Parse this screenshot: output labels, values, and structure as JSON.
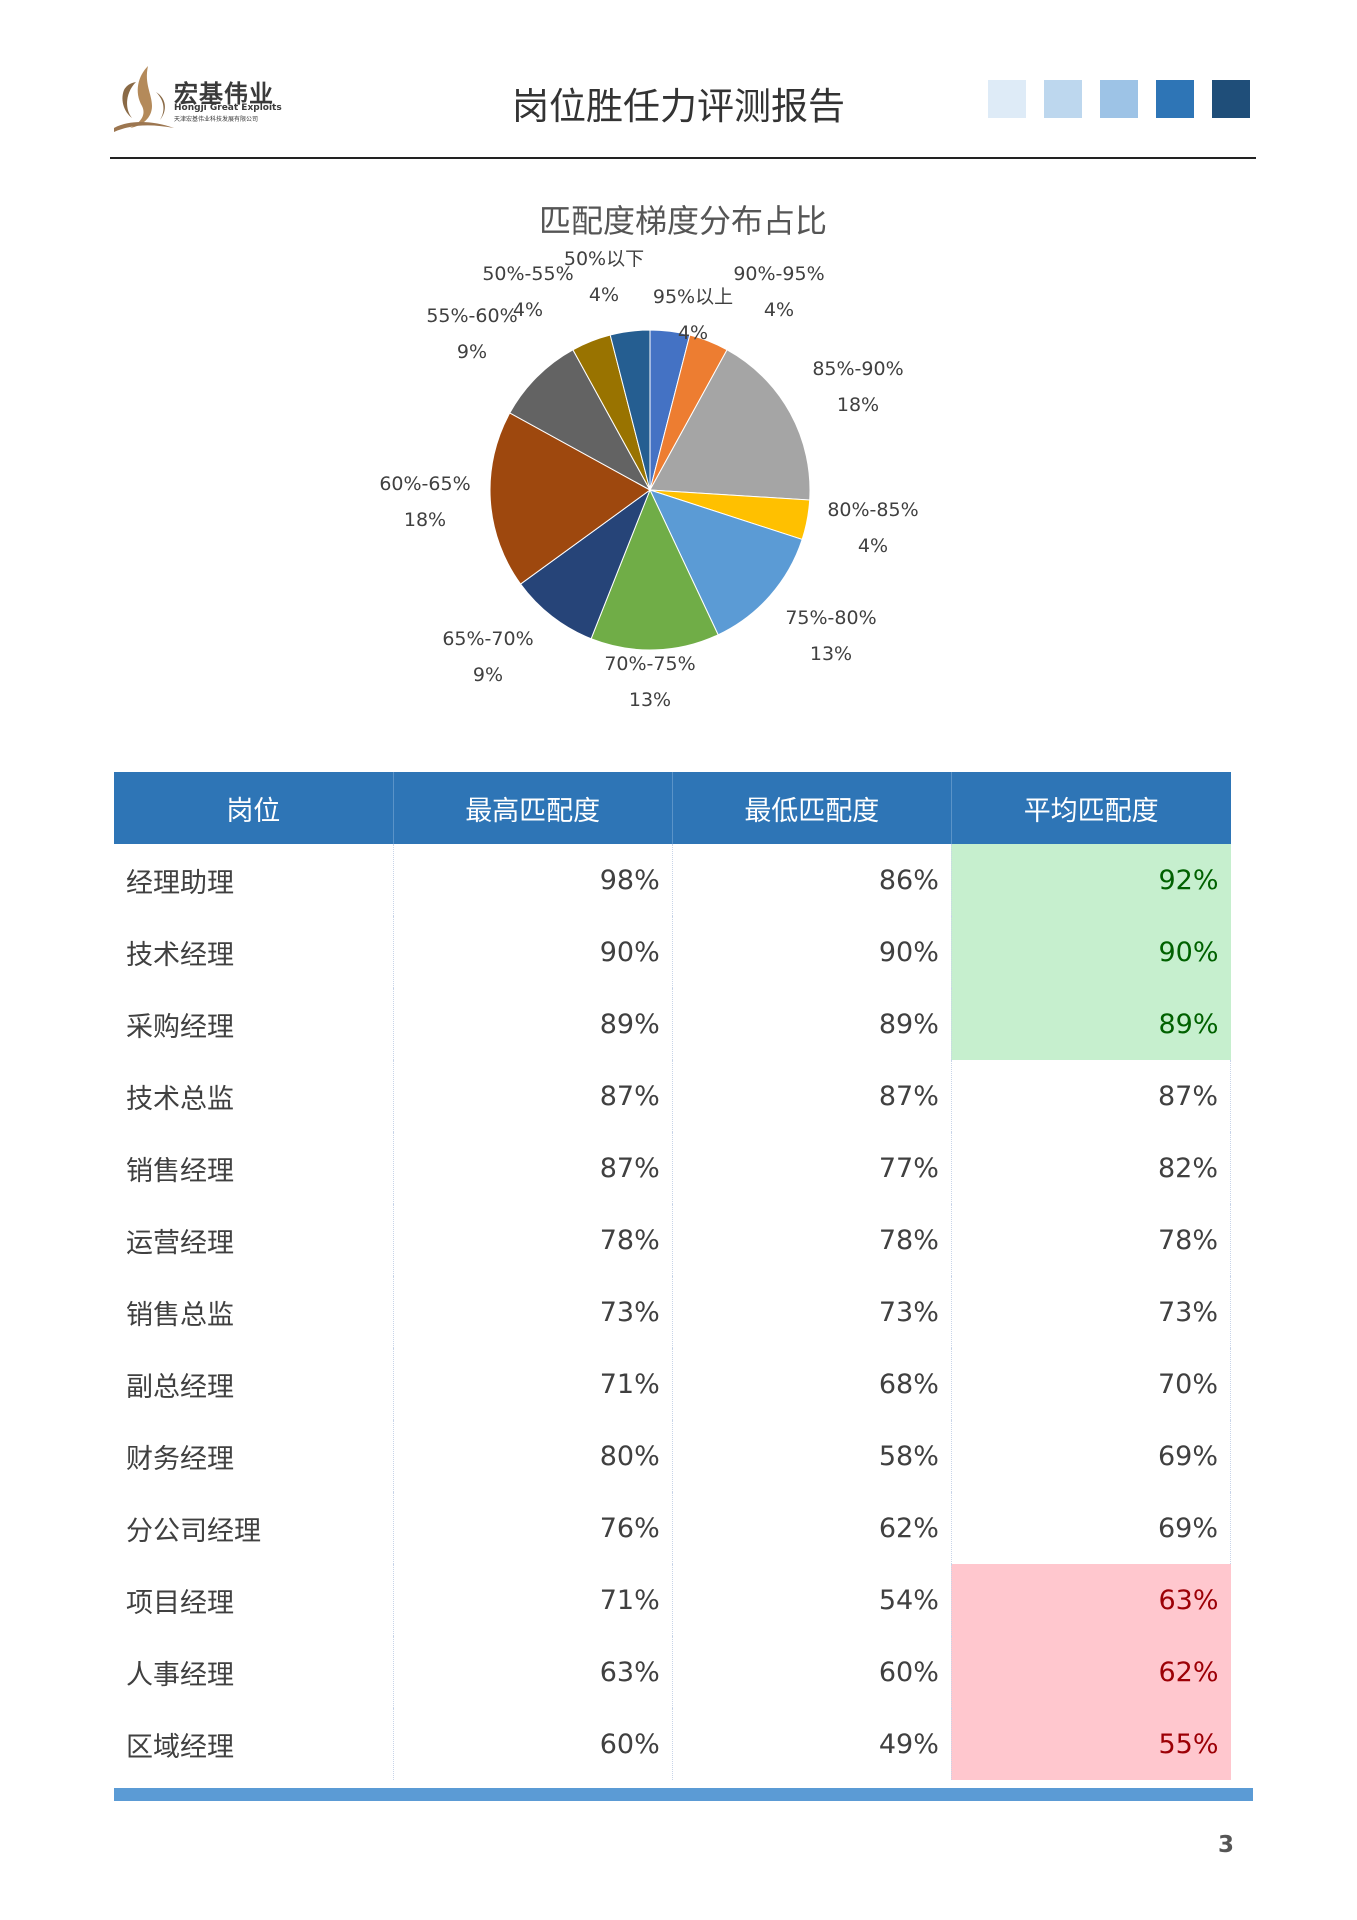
{
  "header": {
    "logo": {
      "name_cn": "宏基伟业",
      "name_en": "Hongji Great Exploits",
      "name_full": "天津宏基伟业科技发展有限公司"
    },
    "title": "岗位胜任力评测报告",
    "squares": [
      "#deebf7",
      "#bdd7ee",
      "#9dc3e6",
      "#2e75b6",
      "#1f4e79"
    ]
  },
  "chart_data": {
    "type": "pie",
    "title": "匹配度梯度分布占比",
    "slices": [
      {
        "label": "95%以上",
        "value": 4,
        "display": "4%",
        "color": "#4472c4"
      },
      {
        "label": "90%-95%",
        "value": 4,
        "display": "4%",
        "color": "#ed7d31"
      },
      {
        "label": "85%-90%",
        "value": 18,
        "display": "18%",
        "color": "#a5a5a5"
      },
      {
        "label": "80%-85%",
        "value": 4,
        "display": "4%",
        "color": "#ffc000"
      },
      {
        "label": "75%-80%",
        "value": 13,
        "display": "13%",
        "color": "#5b9bd5"
      },
      {
        "label": "70%-75%",
        "value": 13,
        "display": "13%",
        "color": "#70ad47"
      },
      {
        "label": "65%-70%",
        "value": 9,
        "display": "9%",
        "color": "#264478"
      },
      {
        "label": "60%-65%",
        "value": 18,
        "display": "18%",
        "color": "#9e480e"
      },
      {
        "label": "55%-60%",
        "value": 9,
        "display": "9%",
        "color": "#636363"
      },
      {
        "label": "50%-55%",
        "value": 4,
        "display": "4%",
        "color": "#997300"
      },
      {
        "label": "50%以下",
        "value": 4,
        "display": "4%",
        "color": "#255e91"
      }
    ]
  },
  "table": {
    "headers": [
      "岗位",
      "最高匹配度",
      "最低匹配度",
      "平均匹配度"
    ],
    "rows": [
      {
        "name": "经理助理",
        "max": "98%",
        "min": "86%",
        "avg": "92%",
        "level": "good"
      },
      {
        "name": "技术经理",
        "max": "90%",
        "min": "90%",
        "avg": "90%",
        "level": "good"
      },
      {
        "name": "采购经理",
        "max": "89%",
        "min": "89%",
        "avg": "89%",
        "level": "good"
      },
      {
        "name": "技术总监",
        "max": "87%",
        "min": "87%",
        "avg": "87%",
        "level": "mid"
      },
      {
        "name": "销售经理",
        "max": "87%",
        "min": "77%",
        "avg": "82%",
        "level": "mid"
      },
      {
        "name": "运营经理",
        "max": "78%",
        "min": "78%",
        "avg": "78%",
        "level": "mid"
      },
      {
        "name": "销售总监",
        "max": "73%",
        "min": "73%",
        "avg": "73%",
        "level": "mid"
      },
      {
        "name": "副总经理",
        "max": "71%",
        "min": "68%",
        "avg": "70%",
        "level": "mid"
      },
      {
        "name": "财务经理",
        "max": "80%",
        "min": "58%",
        "avg": "69%",
        "level": "mid"
      },
      {
        "name": "分公司经理",
        "max": "76%",
        "min": "62%",
        "avg": "69%",
        "level": "mid"
      },
      {
        "name": "项目经理",
        "max": "71%",
        "min": "54%",
        "avg": "63%",
        "level": "bad"
      },
      {
        "name": "人事经理",
        "max": "63%",
        "min": "60%",
        "avg": "62%",
        "level": "bad"
      },
      {
        "name": "区域经理",
        "max": "60%",
        "min": "49%",
        "avg": "55%",
        "level": "bad"
      }
    ]
  },
  "footer": {
    "page_number": "3"
  }
}
